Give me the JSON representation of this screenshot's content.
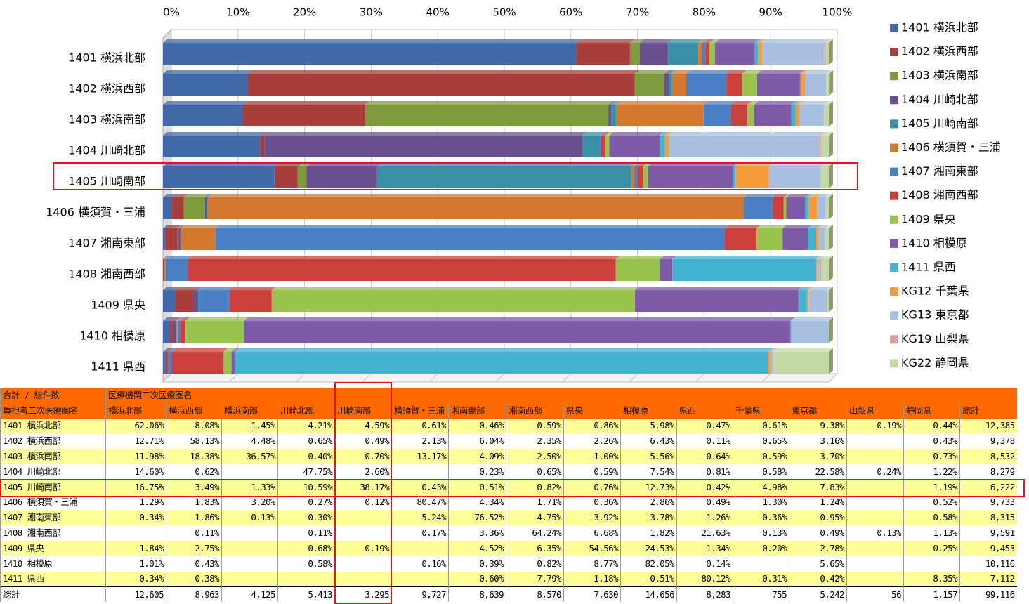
{
  "chart_data": {
    "type": "bar",
    "orientation": "horizontal",
    "stacked": true,
    "categories": [
      "1401 横浜北部",
      "1402 横浜西部",
      "1403 横浜南部",
      "1404 川崎北部",
      "1405 川崎南部",
      "1406 横須賀・三浦",
      "1407 湘南東部",
      "1408 湘南西部",
      "1409 県央",
      "1410 相模原",
      "1411 県西"
    ],
    "xlim": [
      0,
      100
    ],
    "xticks": [
      {
        "value": 0,
        "label": "0%"
      },
      {
        "value": 10,
        "label": "10%"
      },
      {
        "value": 20,
        "label": "20%"
      },
      {
        "value": 30,
        "label": "30%"
      },
      {
        "value": 40,
        "label": "40%"
      },
      {
        "value": 50,
        "label": "50%"
      },
      {
        "value": 60,
        "label": "60%"
      },
      {
        "value": 70,
        "label": "70%"
      },
      {
        "value": 80,
        "label": "80%"
      },
      {
        "value": 90,
        "label": "90%"
      },
      {
        "value": 100,
        "label": "100%"
      }
    ],
    "grid": true,
    "legend": "right",
    "series": [
      {
        "name": "1401 横浜北部",
        "color": "#4169a8",
        "values": [
          62.06,
          12.71,
          11.98,
          14.6,
          16.75,
          1.29,
          0.34,
          null,
          1.84,
          1.01,
          0.34
        ]
      },
      {
        "name": "1402 横浜西部",
        "color": "#a83e3b",
        "values": [
          8.08,
          58.13,
          18.38,
          0.62,
          3.49,
          1.83,
          1.86,
          0.11,
          2.75,
          0.43,
          0.38
        ]
      },
      {
        "name": "1403 横浜南部",
        "color": "#7e9a3c",
        "values": [
          1.45,
          4.48,
          36.57,
          null,
          1.33,
          3.2,
          0.13,
          null,
          null,
          null,
          null
        ]
      },
      {
        "name": "1404 川崎北部",
        "color": "#68508f",
        "values": [
          4.21,
          0.65,
          0.4,
          47.75,
          10.59,
          0.27,
          0.3,
          0.11,
          0.68,
          0.58,
          null
        ]
      },
      {
        "name": "1405 川崎南部",
        "color": "#3a8fa6",
        "values": [
          4.59,
          0.49,
          0.7,
          2.6,
          38.17,
          0.12,
          null,
          null,
          0.19,
          null,
          null
        ]
      },
      {
        "name": "1406 横須賀・三浦",
        "color": "#d47a30",
        "values": [
          0.61,
          2.13,
          13.17,
          null,
          0.43,
          80.47,
          5.24,
          0.17,
          null,
          0.16,
          null
        ]
      },
      {
        "name": "1407 湘南東部",
        "color": "#4a7fc6",
        "values": [
          0.46,
          6.04,
          4.09,
          0.23,
          0.51,
          4.34,
          76.52,
          3.36,
          4.52,
          0.39,
          0.6
        ]
      },
      {
        "name": "1408 湘南西部",
        "color": "#c9403c",
        "values": [
          0.59,
          2.35,
          2.5,
          0.65,
          0.82,
          1.71,
          4.75,
          64.24,
          6.35,
          0.82,
          7.79
        ]
      },
      {
        "name": "1409 県央",
        "color": "#9ac24e",
        "values": [
          0.86,
          2.26,
          1.0,
          0.59,
          0.76,
          0.36,
          3.92,
          6.68,
          54.56,
          8.77,
          1.18
        ]
      },
      {
        "name": "1410 相模原",
        "color": "#7d5ba6",
        "values": [
          5.98,
          6.43,
          5.56,
          7.54,
          12.73,
          2.86,
          3.78,
          1.82,
          24.53,
          82.05,
          0.51
        ]
      },
      {
        "name": "1411 県西",
        "color": "#45b2cf",
        "values": [
          0.47,
          0.11,
          0.64,
          0.81,
          0.42,
          0.49,
          1.26,
          21.63,
          1.34,
          0.14,
          80.12
        ]
      },
      {
        "name": "KG12 千葉県",
        "color": "#f79a3a",
        "values": [
          0.61,
          0.65,
          0.59,
          0.58,
          4.98,
          1.3,
          0.36,
          0.13,
          0.2,
          null,
          0.31
        ]
      },
      {
        "name": "KG13 東京都",
        "color": "#a9bfe0",
        "values": [
          9.38,
          3.16,
          3.7,
          22.58,
          7.83,
          1.24,
          0.95,
          0.49,
          2.78,
          5.65,
          0.42
        ]
      },
      {
        "name": "KG19 山梨県",
        "color": "#d9a0a3",
        "values": [
          0.19,
          null,
          null,
          0.24,
          null,
          null,
          null,
          0.13,
          null,
          null,
          null
        ]
      },
      {
        "name": "KG22 静岡県",
        "color": "#c4d9a8",
        "values": [
          0.44,
          0.43,
          0.73,
          1.22,
          1.19,
          0.52,
          0.58,
          1.13,
          0.25,
          null,
          8.35
        ]
      }
    ]
  },
  "table": {
    "corner": "合計 / 総件数",
    "column_group": "医療機関二次医療圏名",
    "header": [
      "負担者二次医療圏名",
      "横浜北部",
      "横浜西部",
      "横浜南部",
      "川崎北部",
      "川崎南部",
      "横須賀・三浦",
      "湘南東部",
      "湘南西部",
      "県央",
      "相模原",
      "県西",
      "千葉県",
      "東京都",
      "山梨県",
      "静岡県",
      "総計"
    ],
    "rows": [
      [
        "1401 横浜北部",
        "62.06%",
        "8.08%",
        "1.45%",
        "4.21%",
        "4.59%",
        "0.61%",
        "0.46%",
        "0.59%",
        "0.86%",
        "5.98%",
        "0.47%",
        "0.61%",
        "9.38%",
        "0.19%",
        "0.44%",
        "12,385"
      ],
      [
        "1402 横浜西部",
        "12.71%",
        "58.13%",
        "4.48%",
        "0.65%",
        "0.49%",
        "2.13%",
        "6.04%",
        "2.35%",
        "2.26%",
        "6.43%",
        "0.11%",
        "0.65%",
        "3.16%",
        null,
        "0.43%",
        "9,378"
      ],
      [
        "1403 横浜南部",
        "11.98%",
        "18.38%",
        "36.57%",
        "0.40%",
        "0.70%",
        "13.17%",
        "4.09%",
        "2.50%",
        "1.00%",
        "5.56%",
        "0.64%",
        "0.59%",
        "3.70%",
        null,
        "0.73%",
        "8,532"
      ],
      [
        "1404 川崎北部",
        "14.60%",
        "0.62%",
        null,
        "47.75%",
        "2.60%",
        null,
        "0.23%",
        "0.65%",
        "0.59%",
        "7.54%",
        "0.81%",
        "0.58%",
        "22.58%",
        "0.24%",
        "1.22%",
        "8,279"
      ],
      [
        "1405 川崎南部",
        "16.75%",
        "3.49%",
        "1.33%",
        "10.59%",
        "38.17%",
        "0.43%",
        "0.51%",
        "0.82%",
        "0.76%",
        "12.73%",
        "0.42%",
        "4.98%",
        "7.83%",
        null,
        "1.19%",
        "6,222"
      ],
      [
        "1406 横須賀・三浦",
        "1.29%",
        "1.83%",
        "3.20%",
        "0.27%",
        "0.12%",
        "80.47%",
        "4.34%",
        "1.71%",
        "0.36%",
        "2.86%",
        "0.49%",
        "1.30%",
        "1.24%",
        null,
        "0.52%",
        "9,733"
      ],
      [
        "1407 湘南東部",
        "0.34%",
        "1.86%",
        "0.13%",
        "0.30%",
        null,
        "5.24%",
        "76.52%",
        "4.75%",
        "3.92%",
        "3.78%",
        "1.26%",
        "0.36%",
        "0.95%",
        null,
        "0.58%",
        "8,315"
      ],
      [
        "1408 湘南西部",
        null,
        "0.11%",
        null,
        "0.11%",
        null,
        "0.17%",
        "3.36%",
        "64.24%",
        "6.68%",
        "1.82%",
        "21.63%",
        "0.13%",
        "0.49%",
        "0.13%",
        "1.13%",
        "9,591"
      ],
      [
        "1409 県央",
        "1.84%",
        "2.75%",
        null,
        "0.68%",
        "0.19%",
        null,
        "4.52%",
        "6.35%",
        "54.56%",
        "24.53%",
        "1.34%",
        "0.20%",
        "2.78%",
        null,
        "0.25%",
        "9,453"
      ],
      [
        "1410 相模原",
        "1.01%",
        "0.43%",
        null,
        "0.58%",
        null,
        "0.16%",
        "0.39%",
        "0.82%",
        "8.77%",
        "82.05%",
        "0.14%",
        null,
        "5.65%",
        null,
        null,
        "10,116"
      ],
      [
        "1411 県西",
        "0.34%",
        "0.38%",
        null,
        null,
        null,
        null,
        "0.60%",
        "7.79%",
        "1.18%",
        "0.51%",
        "80.12%",
        "0.31%",
        "0.42%",
        null,
        "8.35%",
        "7,112"
      ],
      [
        "総計",
        "12,605",
        "8,963",
        "4,125",
        "5,413",
        "3,295",
        "9,727",
        "8,639",
        "8,570",
        "7,630",
        "14,656",
        "8,283",
        "755",
        "5,242",
        "56",
        "1,157",
        "99,116"
      ]
    ]
  }
}
